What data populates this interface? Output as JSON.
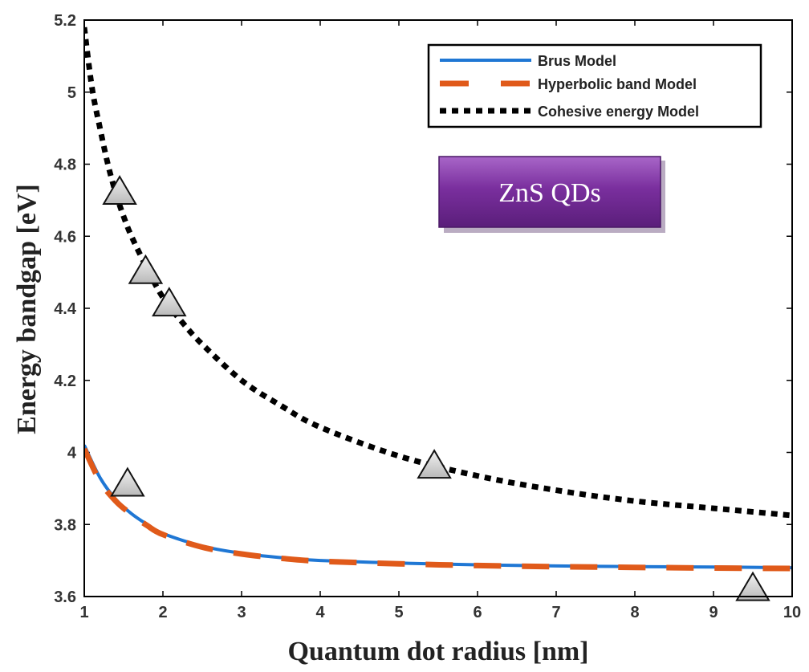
{
  "chart_data": {
    "type": "line",
    "title": "",
    "xlabel": "Quantum dot radius [nm]",
    "ylabel": "Energy bandgap [eV]",
    "xlim": [
      1,
      10
    ],
    "ylim": [
      3.6,
      5.2
    ],
    "xticks": [
      1,
      2,
      3,
      4,
      5,
      6,
      7,
      8,
      9,
      10
    ],
    "yticks": [
      3.6,
      3.8,
      4,
      4.2,
      4.4,
      4.6,
      4.8,
      5,
      5.2
    ],
    "ytick_labels": [
      "3.6",
      "3.8",
      "4",
      "4.2",
      "4.4",
      "4.6",
      "4.8",
      "5",
      "5.2"
    ],
    "grid": false,
    "legend_position": "top-right",
    "series": [
      {
        "name": "Brus Model",
        "style": "solid",
        "color": "#1f77d4",
        "x": [
          1.0,
          1.2,
          1.4,
          1.6,
          1.8,
          2.0,
          2.5,
          3.0,
          3.5,
          4.0,
          5.0,
          6.0,
          7.0,
          8.0,
          9.0,
          10.0
        ],
        "y": [
          4.02,
          3.93,
          3.87,
          3.83,
          3.8,
          3.775,
          3.74,
          3.72,
          3.708,
          3.7,
          3.693,
          3.688,
          3.685,
          3.683,
          3.682,
          3.68
        ]
      },
      {
        "name": "Hyperbolic band Model",
        "style": "dashed",
        "color": "#e05a1a",
        "x": [
          1.0,
          1.2,
          1.4,
          1.6,
          1.8,
          2.0,
          2.5,
          3.0,
          3.5,
          4.0,
          5.0,
          6.0,
          7.0,
          8.0,
          9.0,
          10.0
        ],
        "y": [
          4.01,
          3.92,
          3.865,
          3.828,
          3.797,
          3.772,
          3.737,
          3.718,
          3.706,
          3.698,
          3.691,
          3.686,
          3.683,
          3.681,
          3.679,
          3.678
        ]
      },
      {
        "name": "Cohesive energy Model",
        "style": "dotted",
        "color": "#000000",
        "x": [
          1.0,
          1.1,
          1.2,
          1.3,
          1.4,
          1.5,
          1.6,
          1.8,
          2.0,
          2.25,
          2.5,
          3.0,
          3.5,
          4.0,
          5.0,
          6.0,
          7.0,
          8.0,
          9.0,
          10.0
        ],
        "y": [
          5.18,
          5.01,
          4.9,
          4.8,
          4.72,
          4.655,
          4.6,
          4.51,
          4.43,
          4.36,
          4.3,
          4.2,
          4.13,
          4.07,
          3.99,
          3.935,
          3.895,
          3.865,
          3.845,
          3.825
        ]
      }
    ],
    "markers": {
      "name": "data points",
      "shape": "triangle",
      "points": [
        {
          "x": 1.45,
          "y": 4.72
        },
        {
          "x": 1.55,
          "y": 3.91
        },
        {
          "x": 1.78,
          "y": 4.5
        },
        {
          "x": 2.08,
          "y": 4.41
        },
        {
          "x": 5.45,
          "y": 3.96
        },
        {
          "x": 9.5,
          "y": 3.62
        }
      ]
    },
    "annotations": [
      {
        "text": "ZnS QDs",
        "style": "purple-badge"
      }
    ]
  }
}
